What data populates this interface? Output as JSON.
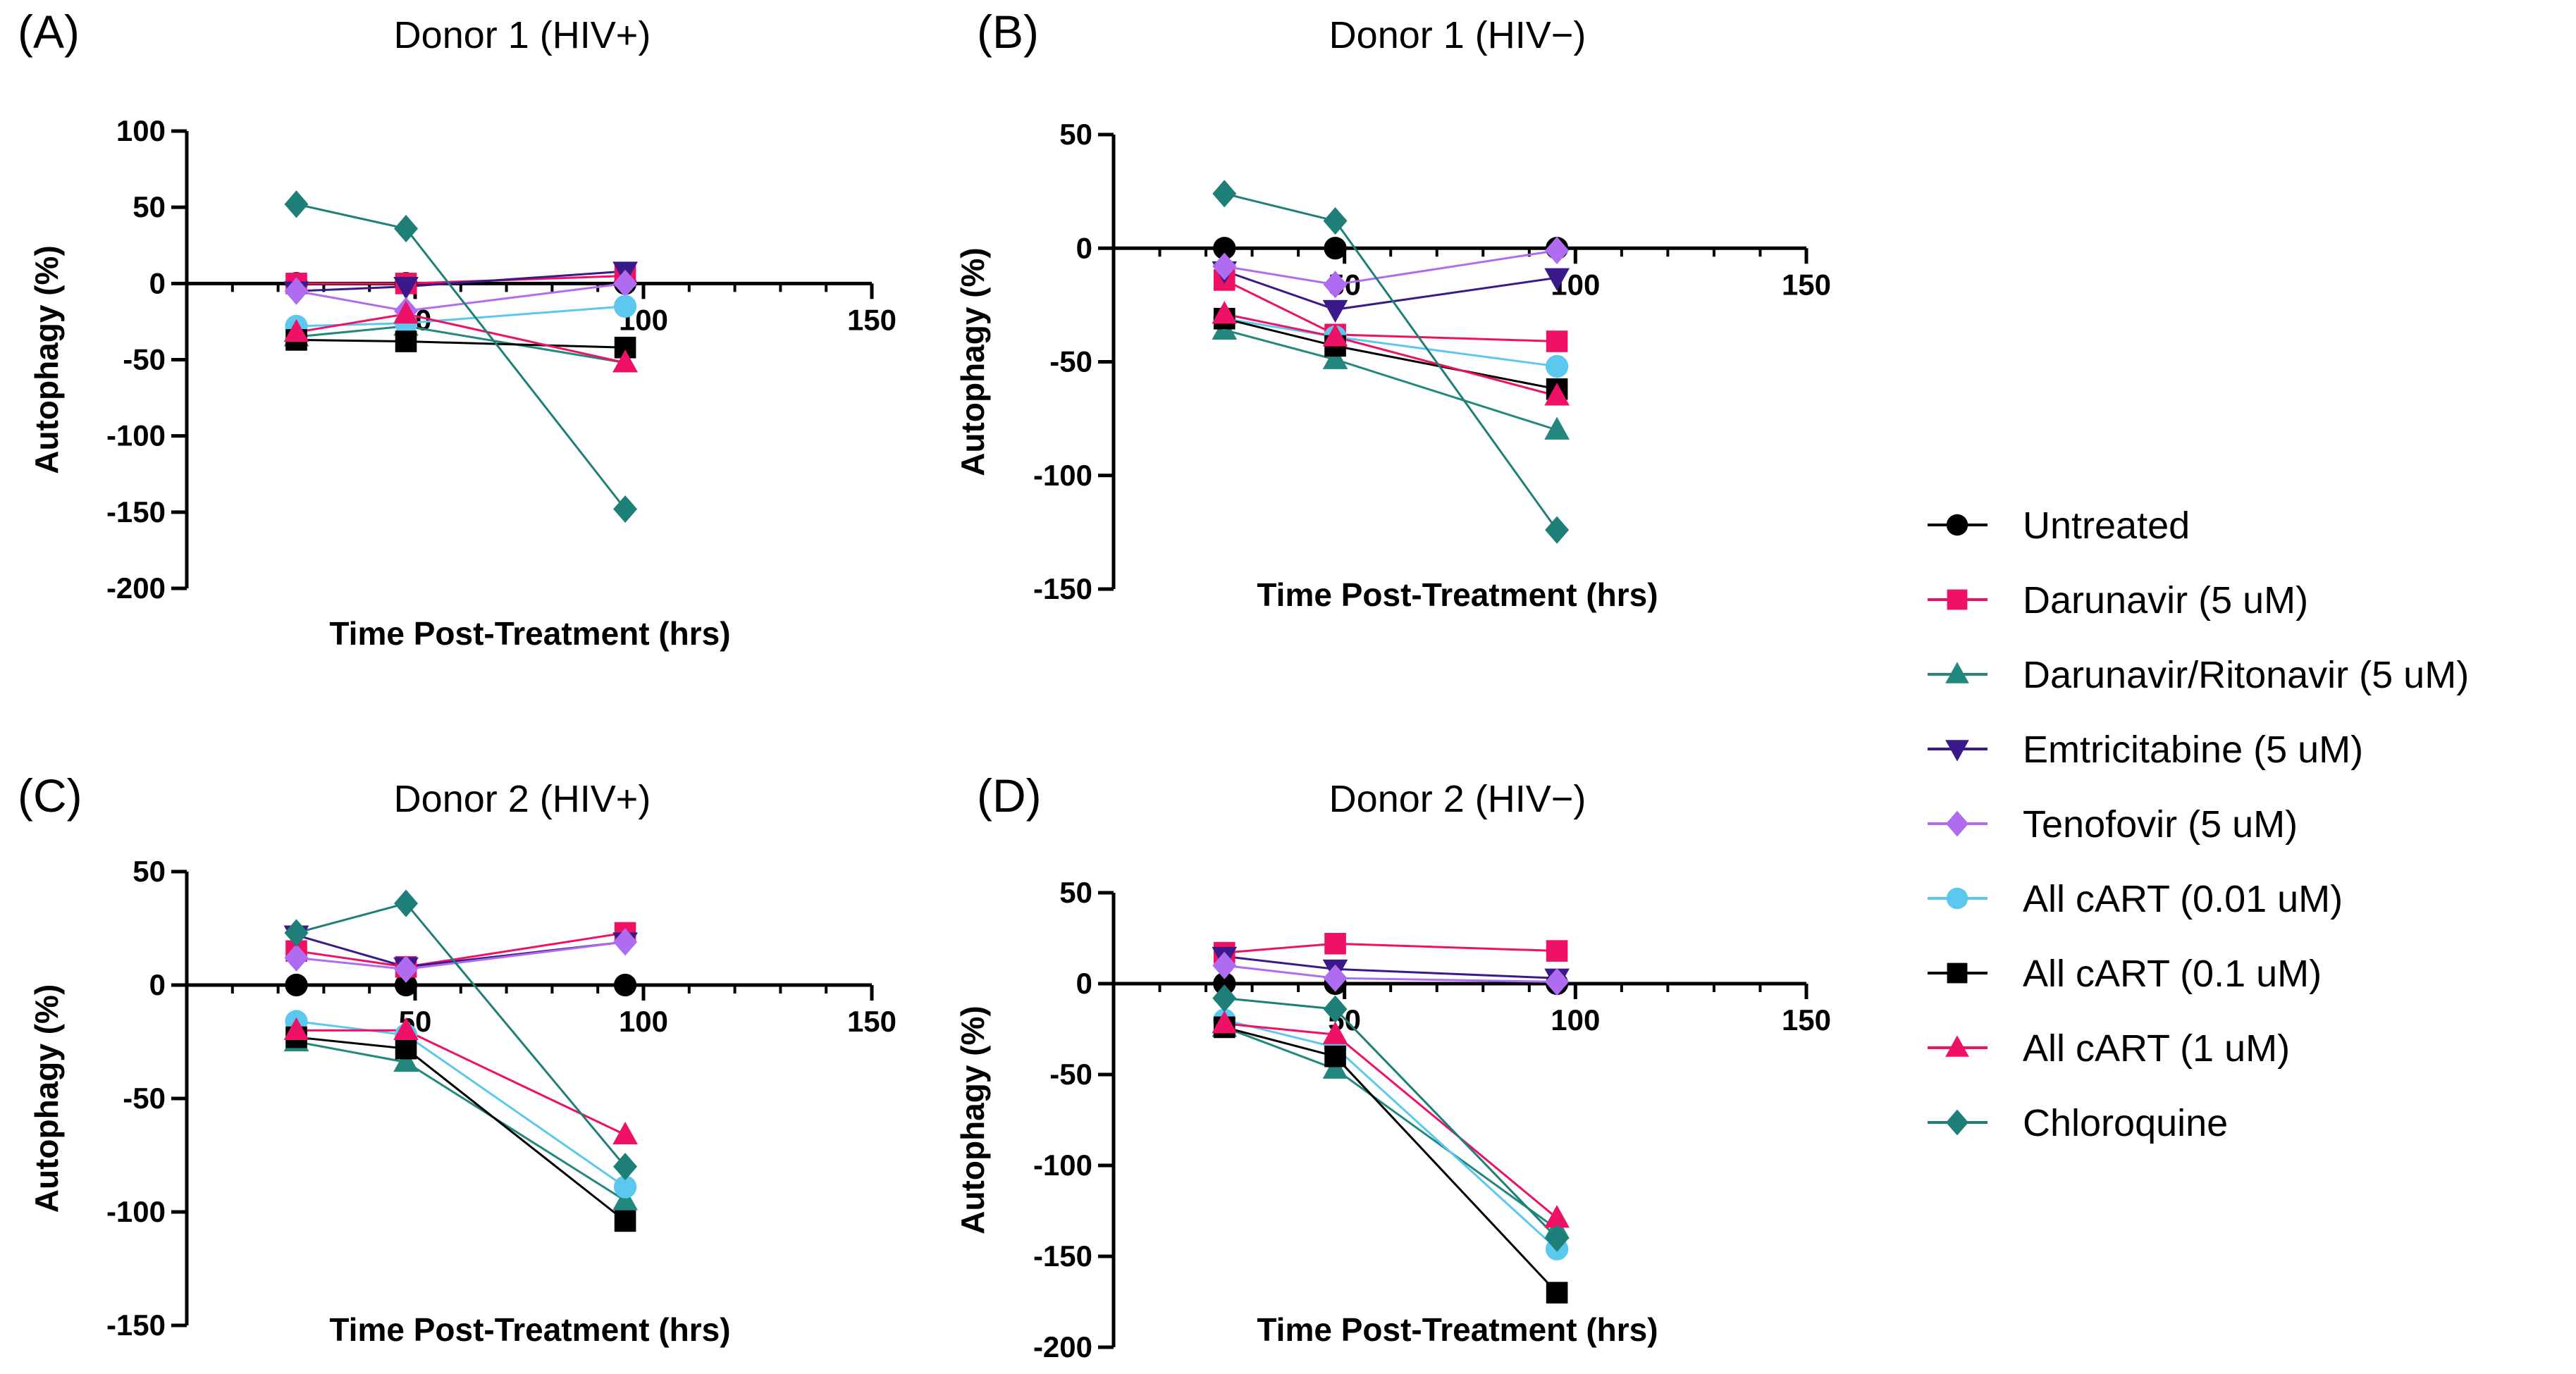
{
  "figure": {
    "legend_items": [
      {
        "label": "Untreated",
        "color": "#000000",
        "marker": "circle"
      },
      {
        "label": "Darunavir (5 uM)",
        "color": "#ee1166",
        "marker": "square"
      },
      {
        "label": "Darunavir/Ritonavir (5 uM)",
        "color": "#22887e",
        "marker": "triangle-up"
      },
      {
        "label": "Emtricitabine (5 uM)",
        "color": "#3a1a8a",
        "marker": "triangle-down"
      },
      {
        "label": "Tenofovir (5 uM)",
        "color": "#b06cf0",
        "marker": "diamond"
      },
      {
        "label": "All cART (0.01 uM)",
        "color": "#5cc8ee",
        "marker": "circle"
      },
      {
        "label": "All cART (0.1 uM)",
        "color": "#000000",
        "marker": "square"
      },
      {
        "label": "All cART (1 uM)",
        "color": "#ee1166",
        "marker": "triangle-up"
      },
      {
        "label": "Chloroquine",
        "color": "#1e7f78",
        "marker": "diamond"
      }
    ]
  },
  "chart_data": [
    {
      "type": "line",
      "panel_label": "(A)",
      "title": "Donor 1 (HIV+)",
      "xlabel": "Time Post-Treatment (hrs)",
      "ylabel": "Autophagy (%)",
      "xlim": [
        0,
        150
      ],
      "ylim": [
        -200,
        100
      ],
      "xticks": [
        50,
        100,
        150
      ],
      "yticks": [
        -200,
        -150,
        -100,
        -50,
        0,
        50,
        100
      ],
      "x": [
        24,
        48,
        96
      ],
      "series": [
        {
          "name": "Untreated",
          "values": [
            0,
            0,
            0
          ]
        },
        {
          "name": "Darunavir (5 uM)",
          "values": [
            0,
            0,
            5
          ]
        },
        {
          "name": "Darunavir/Ritonavir (5 uM)",
          "values": [
            -35,
            -28,
            -52
          ]
        },
        {
          "name": "Emtricitabine (5 uM)",
          "values": [
            -5,
            -2,
            8
          ]
        },
        {
          "name": "Tenofovir (5 uM)",
          "values": [
            -5,
            -18,
            0
          ]
        },
        {
          "name": "All cART (0.01 uM)",
          "values": [
            -28,
            -26,
            -15
          ]
        },
        {
          "name": "All cART (0.1 uM)",
          "values": [
            -37,
            -38,
            -42
          ]
        },
        {
          "name": "All cART (1 uM)",
          "values": [
            -32,
            -20,
            -52
          ]
        },
        {
          "name": "Chloroquine",
          "values": [
            52,
            36,
            -148
          ]
        }
      ]
    },
    {
      "type": "line",
      "panel_label": "(B)",
      "title": "Donor 1 (HIV−)",
      "xlabel": "Time Post-Treatment (hrs)",
      "ylabel": "Autophagy (%)",
      "xlim": [
        0,
        150
      ],
      "ylim": [
        -150,
        50
      ],
      "xticks": [
        50,
        100,
        150
      ],
      "yticks": [
        -150,
        -100,
        -50,
        0,
        50
      ],
      "x": [
        24,
        48,
        96
      ],
      "series": [
        {
          "name": "Untreated",
          "values": [
            0,
            0,
            0
          ]
        },
        {
          "name": "Darunavir (5 uM)",
          "values": [
            -14,
            -38,
            -41
          ]
        },
        {
          "name": "Darunavir/Ritonavir (5 uM)",
          "values": [
            -36,
            -49,
            -80
          ]
        },
        {
          "name": "Emtricitabine (5 uM)",
          "values": [
            -10,
            -27,
            -13
          ]
        },
        {
          "name": "Tenofovir (5 uM)",
          "values": [
            -8,
            -16,
            -1
          ]
        },
        {
          "name": "All cART (0.01 uM)",
          "values": [
            -31,
            -39,
            -52
          ]
        },
        {
          "name": "All cART (0.1 uM)",
          "values": [
            -31,
            -43,
            -62
          ]
        },
        {
          "name": "All cART (1 uM)",
          "values": [
            -29,
            -39,
            -65
          ]
        },
        {
          "name": "Chloroquine",
          "values": [
            24,
            12,
            -124
          ]
        }
      ]
    },
    {
      "type": "line",
      "panel_label": "(C)",
      "title": "Donor 2 (HIV+)",
      "xlabel": "Time Post-Treatment (hrs)",
      "ylabel": "Autophagy (%)",
      "xlim": [
        0,
        150
      ],
      "ylim": [
        -150,
        50
      ],
      "xticks": [
        50,
        100,
        150
      ],
      "yticks": [
        -150,
        -100,
        -50,
        0,
        50
      ],
      "x": [
        24,
        48,
        96
      ],
      "series": [
        {
          "name": "Untreated",
          "values": [
            0,
            0,
            0
          ]
        },
        {
          "name": "Darunavir (5 uM)",
          "values": [
            15,
            8,
            23
          ]
        },
        {
          "name": "Darunavir/Ritonavir (5 uM)",
          "values": [
            -25,
            -34,
            -95
          ]
        },
        {
          "name": "Emtricitabine (5 uM)",
          "values": [
            22,
            8,
            19
          ]
        },
        {
          "name": "Tenofovir (5 uM)",
          "values": [
            12,
            7,
            19
          ]
        },
        {
          "name": "All cART (0.01 uM)",
          "values": [
            -16,
            -22,
            -89
          ]
        },
        {
          "name": "All cART (0.1 uM)",
          "values": [
            -23,
            -28,
            -104
          ]
        },
        {
          "name": "All cART (1 uM)",
          "values": [
            -20,
            -20,
            -66
          ]
        },
        {
          "name": "Chloroquine",
          "values": [
            23,
            36,
            -80
          ]
        }
      ]
    },
    {
      "type": "line",
      "panel_label": "(D)",
      "title": "Donor 2 (HIV−)",
      "xlabel": "Time Post-Treatment (hrs)",
      "ylabel": "Autophagy (%)",
      "xlim": [
        0,
        150
      ],
      "ylim": [
        -200,
        50
      ],
      "xticks": [
        50,
        100,
        150
      ],
      "yticks": [
        -200,
        -150,
        -100,
        -50,
        0,
        50
      ],
      "x": [
        24,
        48,
        96
      ],
      "series": [
        {
          "name": "Untreated",
          "values": [
            0,
            0,
            0
          ]
        },
        {
          "name": "Darunavir (5 uM)",
          "values": [
            17,
            22,
            18
          ]
        },
        {
          "name": "Darunavir/Ritonavir (5 uM)",
          "values": [
            -24,
            -47,
            -135
          ]
        },
        {
          "name": "Emtricitabine (5 uM)",
          "values": [
            15,
            8,
            3
          ]
        },
        {
          "name": "Tenofovir (5 uM)",
          "values": [
            10,
            3,
            1
          ]
        },
        {
          "name": "All cART (0.01 uM)",
          "values": [
            -20,
            -35,
            -146
          ]
        },
        {
          "name": "All cART (0.1 uM)",
          "values": [
            -24,
            -40,
            -170
          ]
        },
        {
          "name": "All cART (1 uM)",
          "values": [
            -22,
            -28,
            -129
          ]
        },
        {
          "name": "Chloroquine",
          "values": [
            -8,
            -14,
            -140
          ]
        }
      ]
    }
  ]
}
